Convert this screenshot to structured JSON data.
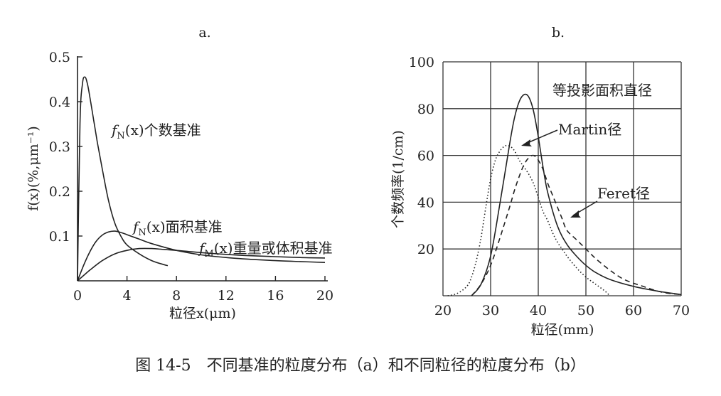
{
  "caption": "图 14-5　不同基准的粒度分布（a）和不同粒径的粒度分布（b）",
  "chart_data": [
    {
      "type": "line",
      "title": "a.",
      "xlabel": "粒径x(μm)",
      "ylabel": "f(x)(%,μm⁻¹)",
      "xlim": [
        0,
        20
      ],
      "ylim": [
        0,
        0.5
      ],
      "xticks": [
        "0",
        "4",
        "8",
        "12",
        "16",
        "20"
      ],
      "yticks": [
        "0.1",
        "0.2",
        "0.3",
        "0.4",
        "0.5"
      ],
      "series": [
        {
          "name": "fN(x)个数基准",
          "name_main": "f",
          "name_sub": "N",
          "name_rest": "(x)个数基准",
          "x": [
            0,
            0.2,
            0.4,
            0.6,
            0.8,
            1.0,
            1.3,
            1.6,
            2.0,
            2.5,
            3.0,
            3.5,
            4.0,
            5.0,
            6.0,
            7.0,
            7.3
          ],
          "y": [
            0,
            0.35,
            0.44,
            0.455,
            0.44,
            0.41,
            0.36,
            0.31,
            0.25,
            0.18,
            0.13,
            0.1,
            0.08,
            0.06,
            0.045,
            0.036,
            0.034
          ]
        },
        {
          "name": "fN(x)面积基准",
          "name_main": "f",
          "name_sub": "N",
          "name_rest": "(x)面积基准",
          "x": [
            0,
            0.5,
            1.0,
            1.5,
            2.0,
            2.5,
            3.0,
            3.5,
            4.0,
            5.0,
            6.0,
            8.0,
            10.0,
            12.0,
            14.0,
            16.0,
            18.0,
            20.0
          ],
          "y": [
            0,
            0.035,
            0.065,
            0.088,
            0.102,
            0.109,
            0.111,
            0.108,
            0.103,
            0.093,
            0.083,
            0.068,
            0.058,
            0.052,
            0.048,
            0.045,
            0.043,
            0.041
          ]
        },
        {
          "name": "fM(x)重量或体积基准",
          "name_main": "f",
          "name_sub": "M",
          "name_rest": "(x)重量或体积基准",
          "x": [
            0,
            0.5,
            1.0,
            2.0,
            3.0,
            4.0,
            5.0,
            6.0,
            7.0,
            8.0,
            10.0,
            12.0,
            14.0,
            16.0,
            18.0,
            20.0
          ],
          "y": [
            0,
            0.012,
            0.024,
            0.045,
            0.06,
            0.068,
            0.072,
            0.072,
            0.07,
            0.068,
            0.063,
            0.059,
            0.056,
            0.054,
            0.052,
            0.051
          ]
        }
      ]
    },
    {
      "type": "line",
      "title": "b.",
      "xlabel": "粒径(mm)",
      "ylabel": "个数频率(1/cm)",
      "xlim": [
        20,
        70
      ],
      "ylim": [
        0,
        100
      ],
      "grid": true,
      "xticks": [
        "20",
        "30",
        "40",
        "50",
        "60",
        "70"
      ],
      "yticks": [
        "20",
        "40",
        "60",
        "80",
        "100"
      ],
      "series": [
        {
          "name": "等投影面积直径",
          "style": "solid",
          "x": [
            26,
            28,
            30,
            32,
            34,
            35,
            36,
            37,
            38,
            39,
            40,
            41,
            42,
            44,
            46,
            48,
            50,
            52,
            55,
            60,
            65,
            70
          ],
          "y": [
            0,
            5,
            17,
            40,
            65,
            76,
            83,
            86,
            85,
            79,
            68,
            55,
            44,
            30,
            22,
            17,
            13,
            10,
            7,
            4,
            2,
            0.5
          ]
        },
        {
          "name": "Martin径",
          "style": "dotted",
          "x": [
            21,
            23,
            25,
            26,
            27,
            28,
            29,
            30,
            31,
            32,
            33,
            34,
            35,
            36,
            37,
            38,
            39,
            40,
            41,
            42,
            43,
            44,
            45,
            46,
            48,
            50,
            52,
            54,
            55
          ],
          "y": [
            0,
            1,
            4,
            8,
            15,
            25,
            38,
            50,
            58,
            62,
            64,
            64,
            62,
            58,
            55,
            52,
            48,
            42,
            36,
            32,
            27,
            23,
            20,
            17,
            12,
            8,
            5,
            2,
            0
          ]
        },
        {
          "name": "Feret径",
          "style": "dashed",
          "x": [
            26,
            28,
            30,
            32,
            34,
            35,
            36,
            37,
            38,
            39,
            40,
            41,
            42,
            43,
            44,
            45,
            46,
            48,
            50,
            52,
            55,
            58,
            62,
            66,
            70
          ],
          "y": [
            0,
            5,
            13,
            25,
            38,
            45,
            51,
            56,
            59,
            60,
            58,
            54,
            48,
            43,
            38,
            33,
            28,
            24,
            20,
            16,
            11,
            7,
            4,
            1.5,
            0.5
          ]
        }
      ],
      "annotations": [
        "等投影面积直径",
        "Martin径",
        "Feret径"
      ]
    }
  ]
}
